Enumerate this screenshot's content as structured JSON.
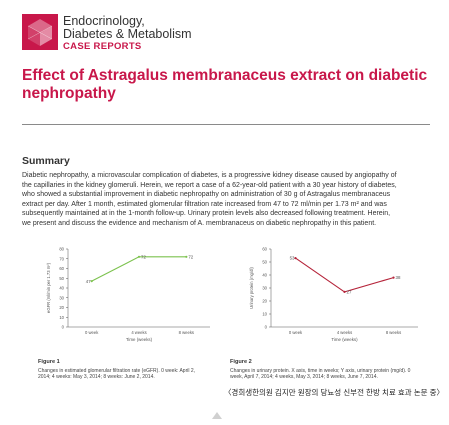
{
  "header": {
    "logo_icon": "journal-cube-logo",
    "journal_line1": "Endocrinology,",
    "journal_line2": "Diabetes & Metabolism",
    "journal_line3": "CASE REPORTS"
  },
  "article": {
    "title": "Effect of Astragalus membranaceus extract on diabetic nephropathy",
    "summary_heading": "Summary",
    "summary_lines": [
      "Diabetic nephropathy, a microvascular complication of diabetes, is a progressive kidney disease caused by angiopathy of",
      "the capillaries in the kidney glomeruli. Herein, we report a case of a 62-year-old patient with a 30 year history of diabetes,",
      "who showed a substantial improvement in diabetic nephropathy on administration of 30 g of Astragalus membranaceus",
      "extract per day. After 1 month, estimated glomerular filtration rate increased from 47 to 72 ml/min per 1.73 m² and was",
      "subsequently maintained at in the 1-month follow-up. Urinary protein levels also decreased following treatment. Herein,",
      "we present and discuss the evidence and mechanism of A. membranaceus on diabetic nephropathy in this patient."
    ]
  },
  "colors": {
    "accent": "#c8174a",
    "egfr_line": "#7cc24e",
    "protein_line": "#b5243a"
  },
  "chart_data": [
    {
      "type": "line",
      "title": "",
      "xlabel": "Time (weeks)",
      "ylabel": "eGFR (ml/min per 1.73 m²)",
      "categories": [
        "0 week",
        "4 weeks",
        "8 weeks"
      ],
      "series": [
        {
          "values": [
            47,
            72,
            72
          ]
        }
      ],
      "data_labels": [
        "47",
        "72",
        "72"
      ],
      "ylim": [
        0,
        80
      ],
      "yticks": [
        "0",
        "10",
        "20",
        "30",
        "40",
        "50",
        "60",
        "70",
        "80"
      ],
      "grid": false
    },
    {
      "type": "line",
      "title": "",
      "xlabel": "Time (weeks)",
      "ylabel": "Urinary protein (mg/dl)",
      "categories": [
        "0 week",
        "4 weeks",
        "8 weeks"
      ],
      "series": [
        {
          "values": [
            53,
            27,
            38
          ]
        }
      ],
      "data_labels": [
        "53",
        "27",
        "38"
      ],
      "ylim": [
        0,
        60
      ],
      "yticks": [
        "0",
        "10",
        "20",
        "30",
        "40",
        "50",
        "60"
      ],
      "grid": false
    }
  ],
  "captions": {
    "fig1_title": "Figure 1",
    "fig1_text": "Changes in estimated glomerular filtration rate (eGFR). 0 week: April 2, 2014; 4 weeks: May 3, 2014; 8 weeks: June 2, 2014.",
    "fig2_title": "Figure 2",
    "fig2_text": "Changes in urinary protein. X axis, time in weeks; Y axis, urinary protein (mg/d). 0 week, April 7, 2014; 4 weeks, May 3, 2014; 8 weeks, June 7, 2014."
  },
  "footer": {
    "korean_caption": "〈경희생한의원 김지만 원장의 당뇨성 신부전 한방 치료 효과 논문 중〉",
    "scroll_icon": "scroll-up-arrow-icon"
  }
}
